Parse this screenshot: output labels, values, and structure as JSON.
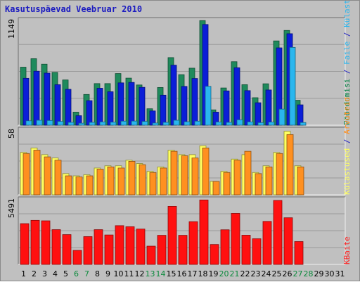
{
  "chart_data": {
    "type": "bar",
    "title": "Kasutuspäevad Veebruar 2010",
    "categories": [
      "1",
      "2",
      "3",
      "4",
      "5",
      "6",
      "7",
      "8",
      "9",
      "10",
      "11",
      "12",
      "13",
      "14",
      "15",
      "16",
      "17",
      "18",
      "19",
      "20",
      "21",
      "22",
      "23",
      "24",
      "25",
      "26",
      "27",
      "28",
      "29",
      "30",
      "31"
    ],
    "weekend_days": [
      "6",
      "7",
      "13",
      "14",
      "20",
      "21",
      "27",
      "28"
    ],
    "panels": [
      {
        "id": "top",
        "ymax_label": "1149",
        "ymax": 1149,
        "side_labels": [
          {
            "text": "Pöördumisi",
            "color": "#008040"
          },
          {
            "text": " / ",
            "color": "#1c1cc0"
          },
          {
            "text": "Faile",
            "color": "#2ab6ee"
          },
          {
            "text": " / ",
            "color": "#1c1cc0"
          },
          {
            "text": "Külastused",
            "color": "#2ab6ee"
          }
        ],
        "series": [
          {
            "name": "Pöördumisi",
            "color": "#1f8a5c",
            "values": [
              636,
              729,
              669,
              579,
              496,
              143,
              337,
              456,
              456,
              566,
              516,
              441,
              180,
              413,
              741,
              554,
              625,
              1147,
              168,
              408,
              696,
              444,
              301,
              454,
              924,
              1039,
              273
            ]
          },
          {
            "name": "Faile",
            "color": "#0b1ed8",
            "values": [
              514,
              592,
              571,
              444,
              393,
              104,
              269,
              405,
              367,
              464,
              469,
              415,
              156,
              329,
              658,
              425,
              512,
              1104,
              143,
              376,
              630,
              379,
              246,
              386,
              848,
              1003,
              223
            ]
          },
          {
            "name": "Külastused",
            "color": "#2ab6ee",
            "values": [
              48,
              54,
              51,
              41,
              31,
              22,
              31,
              36,
              33,
              44,
              45,
              41,
              24,
              31,
              54,
              38,
              44,
              426,
              35,
              31,
              59,
              36,
              28,
              34,
              176,
              853,
              29
            ]
          }
        ]
      },
      {
        "id": "middle",
        "ymax_label": "58",
        "ymax": 58,
        "side_labels": [
          {
            "text": "Külastused",
            "color": "#ffff60"
          },
          {
            "text": " / ",
            "color": "#1c1cc0"
          },
          {
            "text": "Arvuteid",
            "color": "#ff9020"
          }
        ],
        "series": [
          {
            "name": "Külastused",
            "color": "#ffff60",
            "values": [
              38,
              42,
              36,
              33,
              19,
              17,
              18,
              24,
              26,
              26,
              31,
              28,
              21,
              25,
              40,
              36,
              36,
              44,
              12,
              21,
              32,
              36,
              20,
              26,
              38,
              57,
              26
            ]
          },
          {
            "name": "Arvuteid",
            "color": "#ff9020",
            "values": [
              37,
              40,
              34,
              31,
              17,
              16,
              17,
              23,
              25,
              24,
              30,
              27,
              20,
              24,
              39,
              35,
              33,
              42,
              12,
              20,
              31,
              39,
              19,
              25,
              37,
              54,
              25
            ]
          }
        ]
      },
      {
        "id": "bottom",
        "ymax_label": "5491",
        "ymax": 5491,
        "side_labels": [
          {
            "text": "KBaite",
            "color": "#ff2020"
          }
        ],
        "series": [
          {
            "name": "KBaite",
            "color": "#ff1010",
            "values": [
              3460,
              3740,
              3700,
              2950,
              2530,
              1190,
              2360,
              2950,
              2500,
              3290,
              3200,
              3000,
              1550,
              2470,
              4930,
              2470,
              3630,
              5470,
              1690,
              2940,
              4330,
              2480,
              2180,
              3650,
              5430,
              3960,
              1940
            ]
          }
        ]
      }
    ],
    "grid": true,
    "legend_placement": "right-vertical"
  }
}
